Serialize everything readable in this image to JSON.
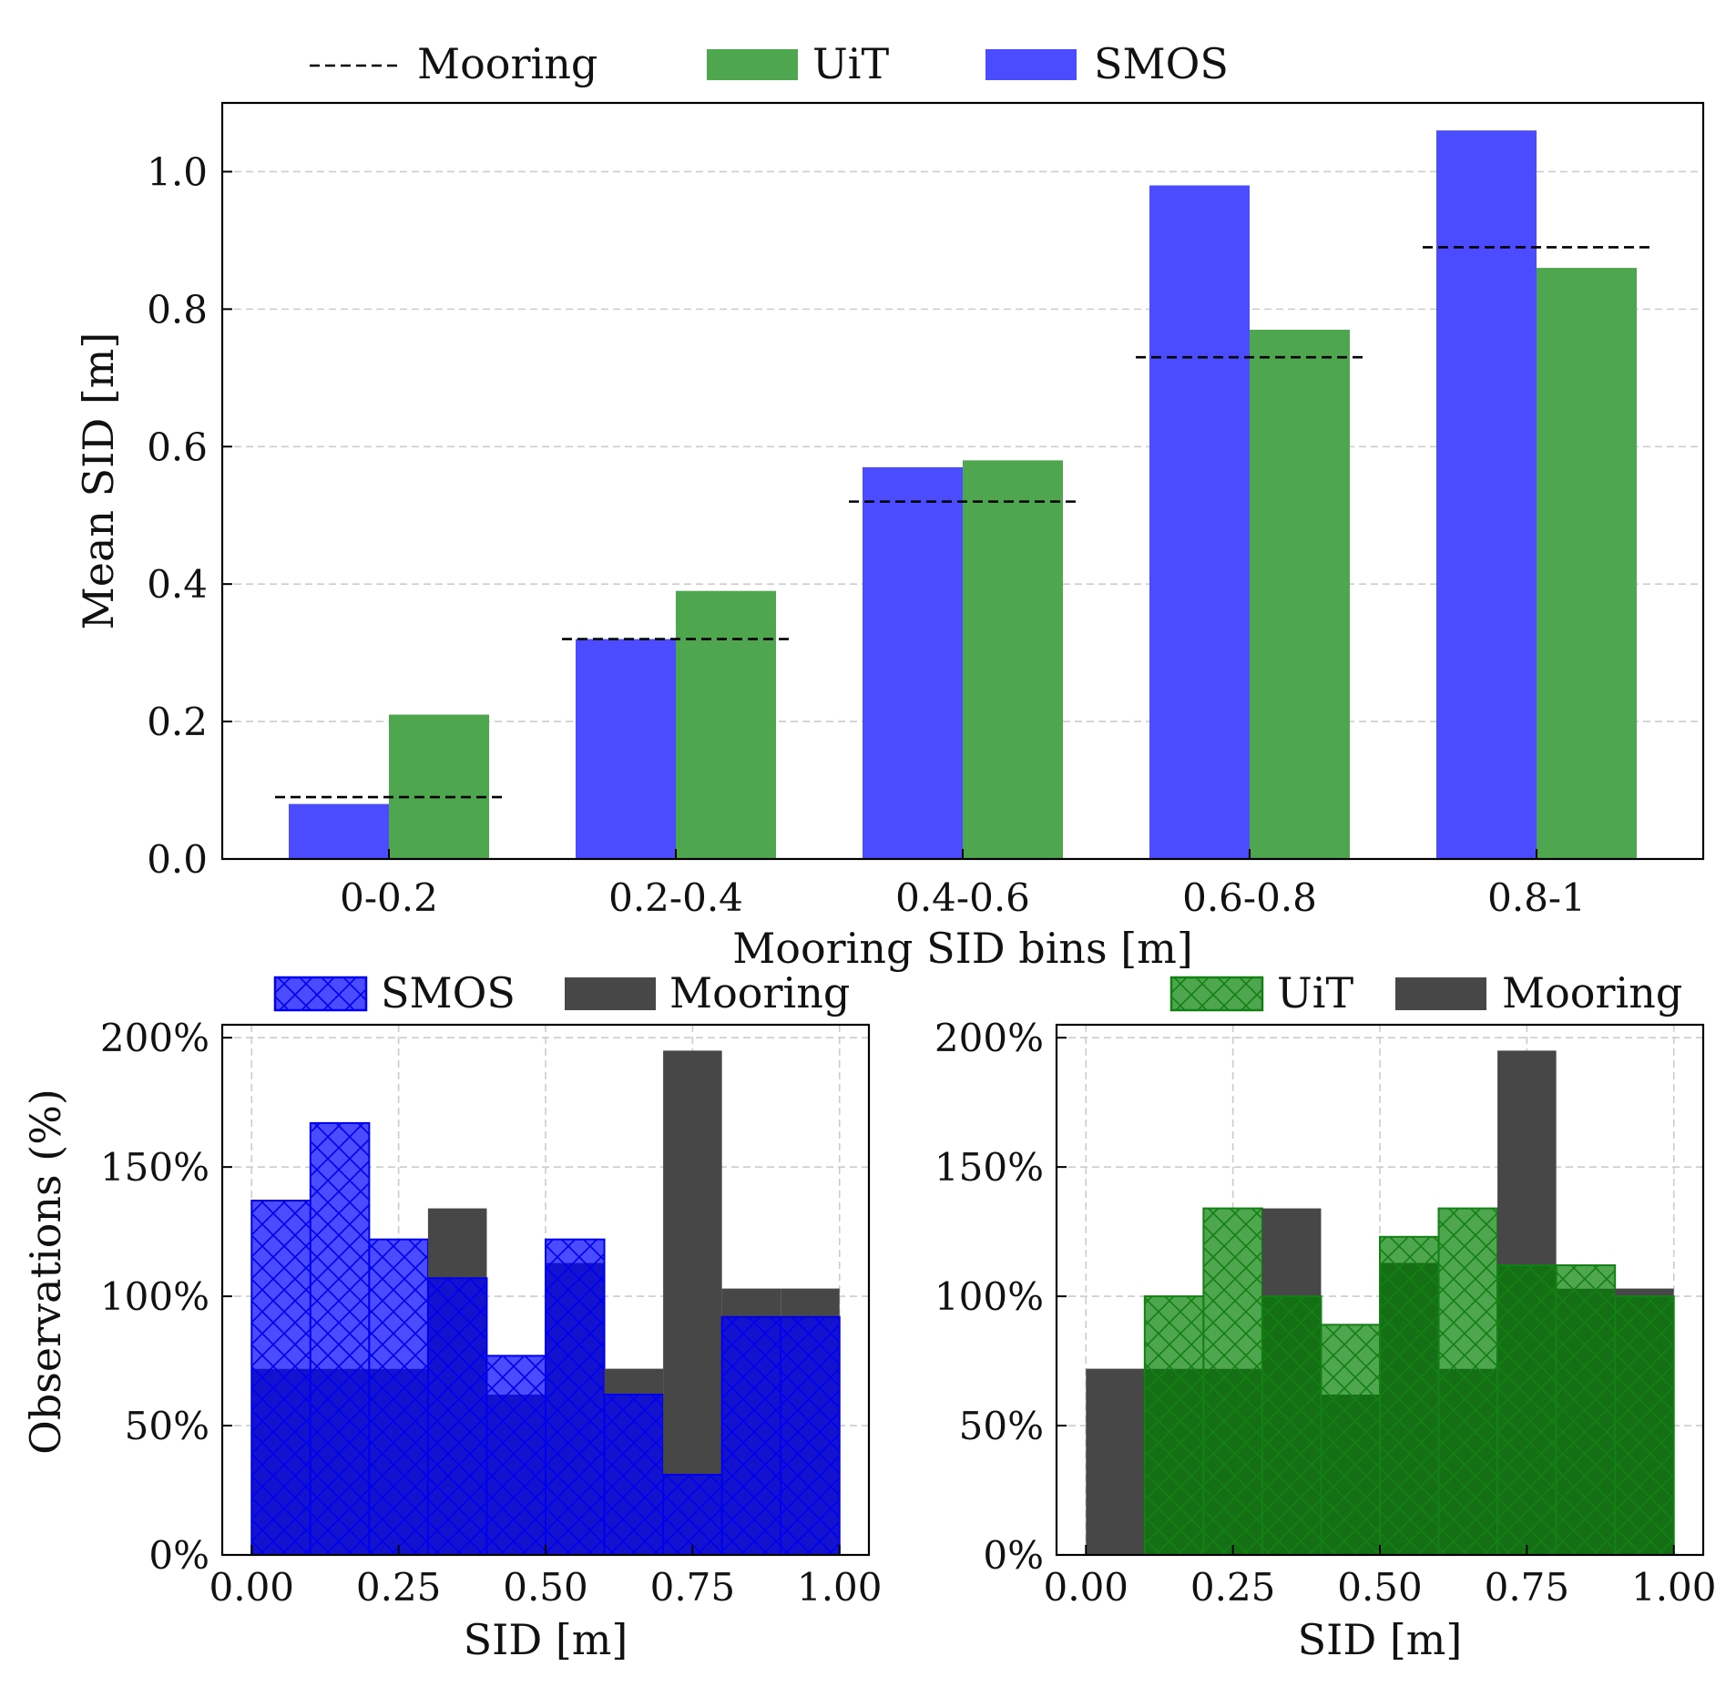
{
  "colors": {
    "smos": "#4b4bff",
    "uit": "#4ea64e",
    "mooring": "#474747",
    "smos_dark": "#1212cf",
    "uit_dark": "#157015",
    "smos_hatch": "#0000ee",
    "uit_hatch": "#138013",
    "grid": "#cccccc",
    "axis": "#000000"
  },
  "chart_data": [
    {
      "id": "top",
      "type": "bar",
      "xlabel": "Mooring SID bins [m]",
      "ylabel": "Mean SID [m]",
      "ylim": [
        0,
        1.1
      ],
      "yticks": [
        "0.0",
        "0.2",
        "0.4",
        "0.6",
        "0.8",
        "1.0"
      ],
      "categories": [
        "0-0.2",
        "0.2-0.4",
        "0.4-0.6",
        "0.6-0.8",
        "0.8-1"
      ],
      "series": [
        {
          "name": "SMOS",
          "values": [
            0.08,
            0.32,
            0.57,
            0.98,
            1.06
          ]
        },
        {
          "name": "UiT",
          "values": [
            0.21,
            0.39,
            0.58,
            0.77,
            0.86
          ]
        }
      ],
      "mooring": {
        "name": "Mooring",
        "values": [
          0.09,
          0.32,
          0.52,
          0.73,
          0.89
        ]
      },
      "grid": "horizontal dashed",
      "legend": {
        "placement": "top",
        "items": [
          "Mooring",
          "UiT",
          "SMOS"
        ]
      }
    },
    {
      "id": "bottom-left",
      "type": "histogram",
      "xlabel": "SID [m]",
      "ylabel": "Observations (%)",
      "xlim": [
        -0.05,
        1.05
      ],
      "ylim": [
        0,
        205
      ],
      "xticks": [
        "0.00",
        "0.25",
        "0.50",
        "0.75",
        "1.00"
      ],
      "yticks": [
        "0%",
        "50%",
        "100%",
        "150%",
        "200%"
      ],
      "bin_edges": [
        0,
        0.1,
        0.2,
        0.3,
        0.4,
        0.5,
        0.6,
        0.7,
        0.8,
        0.9,
        1.0
      ],
      "series": [
        {
          "name": "SMOS",
          "values": [
            137,
            167,
            122,
            107,
            77,
            122,
            62,
            31,
            92,
            92
          ]
        },
        {
          "name": "Mooring",
          "values": [
            72,
            72,
            72,
            134,
            62,
            113,
            72,
            195,
            103,
            103
          ]
        }
      ],
      "grid": true,
      "legend": {
        "placement": "top",
        "items": [
          "SMOS",
          "Mooring"
        ]
      }
    },
    {
      "id": "bottom-right",
      "type": "histogram",
      "xlabel": "SID [m]",
      "ylabel": "",
      "xlim": [
        -0.05,
        1.05
      ],
      "ylim": [
        0,
        205
      ],
      "xticks": [
        "0.00",
        "0.25",
        "0.50",
        "0.75",
        "1.00"
      ],
      "yticks": [
        "0%",
        "50%",
        "100%",
        "150%",
        "200%"
      ],
      "bin_edges": [
        0,
        0.1,
        0.2,
        0.3,
        0.4,
        0.5,
        0.6,
        0.7,
        0.8,
        0.9,
        1.0
      ],
      "series": [
        {
          "name": "UiT",
          "values": [
            0,
            100,
            134,
            100,
            89,
            123,
            134,
            112,
            112,
            100
          ]
        },
        {
          "name": "Mooring",
          "values": [
            72,
            72,
            72,
            134,
            62,
            113,
            72,
            195,
            103,
            103
          ]
        }
      ],
      "grid": true,
      "legend": {
        "placement": "top",
        "items": [
          "UiT",
          "Mooring"
        ]
      }
    }
  ]
}
